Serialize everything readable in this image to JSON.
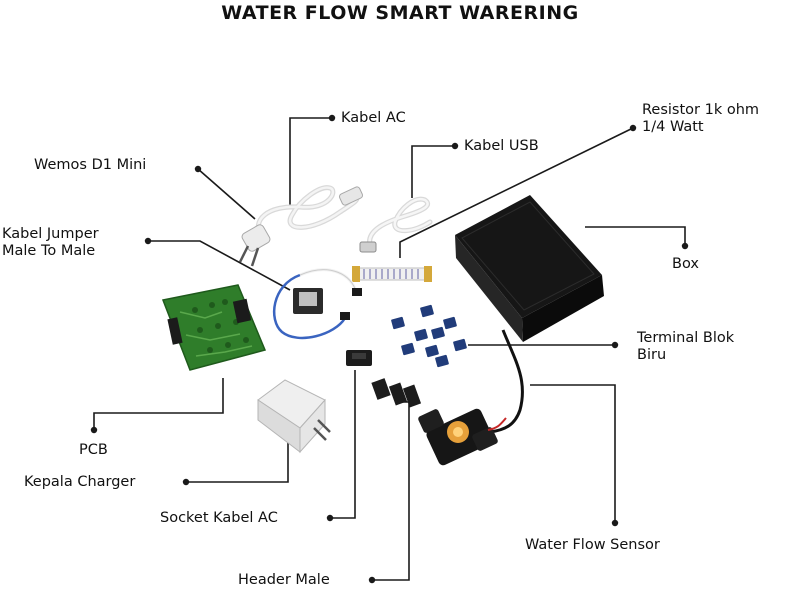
{
  "title": "WATER FLOW SMART WARERING",
  "labels": {
    "kabel_ac": "Kabel AC",
    "resistor": "Resistor 1k ohm\n1/4 Watt",
    "kabel_usb": "Kabel USB",
    "wemos": "Wemos D1 Mini",
    "kabel_jumper": "Kabel Jumper\nMale To Male",
    "box": "Box",
    "terminal_blok": "Terminal Blok\nBiru",
    "pcb": "PCB",
    "kepala_charger": "Kepala Charger",
    "socket_kabel_ac": "Socket Kabel AC",
    "water_flow_sensor": "Water  Flow Sensor",
    "header_male": "Header Male"
  },
  "colors": {
    "line": "#1a1a1a",
    "pcb_green": "#2f7d2a",
    "box_black": "#141414",
    "terminal_blue": "#213c7a",
    "cable_white": "#e9e9e9"
  }
}
